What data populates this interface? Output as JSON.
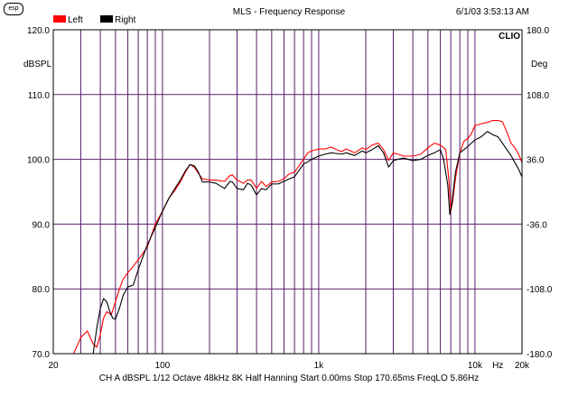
{
  "header": {
    "watermark": "esp",
    "title": "MLS - Frequency Response",
    "timestamp": "6/1/03 3:53:13 AM",
    "brand": "CLIO"
  },
  "footer": {
    "settings": "CH A   dBSPL   1/12 Octave   48kHz   8K   Half Hanning   Start 0.00ms   Stop 170.65ms   FreqLO 5.86Hz"
  },
  "colors": {
    "left": "#ff0000",
    "right": "#000000",
    "vgrid": "#5a1e6e",
    "hgrid": "#5a1e6e"
  },
  "chart_data": {
    "type": "line",
    "title": "MLS - Frequency Response",
    "xscale": "log",
    "xlim": [
      20,
      20000
    ],
    "ylim": [
      70,
      120
    ],
    "y2lim": [
      -180,
      180
    ],
    "ylabel": "dBSPL",
    "y2label": "Deg",
    "x_ticks": [
      {
        "v": 20,
        "label": "20"
      },
      {
        "v": 100,
        "label": "100"
      },
      {
        "v": 1000,
        "label": "1k"
      },
      {
        "v": 10000,
        "label": "10k"
      },
      {
        "v": 20000,
        "label": "20k"
      }
    ],
    "x_unit_label": "Hz",
    "y_ticks": [
      "70.0",
      "80.0",
      "90.0",
      "100.0",
      "110.0",
      "120.0"
    ],
    "y2_ticks": [
      "-180.0",
      "-108.0",
      "-36.0",
      "36.0",
      "108.0",
      "180.0"
    ],
    "legend": [
      "Left",
      "Right"
    ],
    "grid": true,
    "series": [
      {
        "name": "Left",
        "color": "#ff0000",
        "points": [
          [
            20,
            70.0
          ],
          [
            27,
            70.0
          ],
          [
            30,
            72.5
          ],
          [
            33,
            73.5
          ],
          [
            36,
            71.5
          ],
          [
            38,
            71.0
          ],
          [
            40,
            73
          ],
          [
            42,
            75.5
          ],
          [
            44,
            76.5
          ],
          [
            47,
            76
          ],
          [
            50,
            78
          ],
          [
            53,
            80
          ],
          [
            56,
            81.5
          ],
          [
            60,
            82.5
          ],
          [
            65,
            83.5
          ],
          [
            70,
            84.5
          ],
          [
            75,
            85.5
          ],
          [
            80,
            86.5
          ],
          [
            90,
            90
          ],
          [
            100,
            92
          ],
          [
            110,
            94
          ],
          [
            120,
            95.2
          ],
          [
            130,
            96.5
          ],
          [
            140,
            98
          ],
          [
            150,
            99.2
          ],
          [
            160,
            98.8
          ],
          [
            170,
            97.8
          ],
          [
            180,
            97
          ],
          [
            200,
            96.8
          ],
          [
            220,
            96.8
          ],
          [
            250,
            96.6
          ],
          [
            270,
            97.5
          ],
          [
            280,
            97.6
          ],
          [
            300,
            96.8
          ],
          [
            330,
            96.3
          ],
          [
            350,
            96.8
          ],
          [
            370,
            96.8
          ],
          [
            400,
            95.5
          ],
          [
            430,
            96.6
          ],
          [
            460,
            95.8
          ],
          [
            500,
            96.5
          ],
          [
            550,
            96.6
          ],
          [
            600,
            97.0
          ],
          [
            650,
            97.8
          ],
          [
            700,
            98.0
          ],
          [
            800,
            100.0
          ],
          [
            850,
            101.0
          ],
          [
            900,
            101.3
          ],
          [
            1000,
            101.6
          ],
          [
            1100,
            101.6
          ],
          [
            1200,
            101.9
          ],
          [
            1300,
            101.5
          ],
          [
            1400,
            101.2
          ],
          [
            1500,
            101.6
          ],
          [
            1700,
            101.0
          ],
          [
            1900,
            101.8
          ],
          [
            2000,
            101.5
          ],
          [
            2200,
            102.2
          ],
          [
            2400,
            102.5
          ],
          [
            2600,
            101.5
          ],
          [
            2800,
            99.8
          ],
          [
            3000,
            101.0
          ],
          [
            3200,
            100.8
          ],
          [
            3500,
            100.5
          ],
          [
            4000,
            100.5
          ],
          [
            4500,
            100.8
          ],
          [
            5000,
            101.8
          ],
          [
            5500,
            102.5
          ],
          [
            6000,
            102.2
          ],
          [
            6500,
            101.5
          ],
          [
            6800,
            97
          ],
          [
            7000,
            92
          ],
          [
            7200,
            93.5
          ],
          [
            7500,
            97
          ],
          [
            8000,
            101.0
          ],
          [
            8500,
            102.8
          ],
          [
            9000,
            103.2
          ],
          [
            9500,
            104.0
          ],
          [
            10000,
            105.2
          ],
          [
            11000,
            105.5
          ],
          [
            12000,
            105.7
          ],
          [
            13000,
            106.0
          ],
          [
            14000,
            106.0
          ],
          [
            15000,
            105.8
          ],
          [
            16000,
            104.2
          ],
          [
            17000,
            102.5
          ],
          [
            18000,
            101.8
          ],
          [
            19000,
            100.8
          ],
          [
            20000,
            99.5
          ]
        ]
      },
      {
        "name": "Right",
        "color": "#000000",
        "points": [
          [
            20,
            70.0
          ],
          [
            36,
            70.0
          ],
          [
            38,
            74
          ],
          [
            40,
            77
          ],
          [
            42,
            78.5
          ],
          [
            44,
            78
          ],
          [
            46,
            76.5
          ],
          [
            48,
            75.5
          ],
          [
            50,
            75.3
          ],
          [
            53,
            77
          ],
          [
            56,
            79
          ],
          [
            60,
            80.3
          ],
          [
            65,
            80.6
          ],
          [
            70,
            83
          ],
          [
            75,
            85
          ],
          [
            80,
            86.8
          ],
          [
            90,
            89.5
          ],
          [
            100,
            92
          ],
          [
            110,
            94
          ],
          [
            120,
            95.5
          ],
          [
            130,
            96.8
          ],
          [
            140,
            98.2
          ],
          [
            150,
            99.2
          ],
          [
            160,
            99.0
          ],
          [
            170,
            98.0
          ],
          [
            180,
            96.5
          ],
          [
            200,
            96.5
          ],
          [
            220,
            96.3
          ],
          [
            250,
            95.5
          ],
          [
            270,
            96.6
          ],
          [
            280,
            96.5
          ],
          [
            300,
            95.5
          ],
          [
            330,
            95.3
          ],
          [
            350,
            96.3
          ],
          [
            370,
            96
          ],
          [
            400,
            94.5
          ],
          [
            430,
            95.5
          ],
          [
            460,
            95.3
          ],
          [
            500,
            96.2
          ],
          [
            550,
            96.2
          ],
          [
            600,
            96.6
          ],
          [
            650,
            97.0
          ],
          [
            700,
            97.3
          ],
          [
            800,
            99.3
          ],
          [
            850,
            99.6
          ],
          [
            900,
            100.0
          ],
          [
            1000,
            100.5
          ],
          [
            1100,
            100.8
          ],
          [
            1200,
            101.0
          ],
          [
            1300,
            100.9
          ],
          [
            1400,
            100.8
          ],
          [
            1500,
            101.0
          ],
          [
            1700,
            100.6
          ],
          [
            1900,
            101.3
          ],
          [
            2000,
            101.0
          ],
          [
            2200,
            101.5
          ],
          [
            2400,
            102.1
          ],
          [
            2600,
            101.0
          ],
          [
            2800,
            98.8
          ],
          [
            3000,
            99.8
          ],
          [
            3200,
            100.0
          ],
          [
            3500,
            100.2
          ],
          [
            4000,
            99.8
          ],
          [
            4500,
            100.0
          ],
          [
            5000,
            100.6
          ],
          [
            5500,
            101.0
          ],
          [
            6000,
            101.5
          ],
          [
            6300,
            100.0
          ],
          [
            6700,
            96
          ],
          [
            6900,
            91.5
          ],
          [
            7100,
            93
          ],
          [
            7500,
            98
          ],
          [
            8000,
            101.0
          ],
          [
            8500,
            101.5
          ],
          [
            9000,
            102.0
          ],
          [
            9500,
            102.5
          ],
          [
            10000,
            103.0
          ],
          [
            11000,
            103.5
          ],
          [
            12000,
            104.3
          ],
          [
            13000,
            103.8
          ],
          [
            14000,
            103.5
          ],
          [
            15000,
            102.5
          ],
          [
            16000,
            101.5
          ],
          [
            17000,
            100.6
          ],
          [
            18000,
            99.5
          ],
          [
            19000,
            98.5
          ],
          [
            20000,
            97.3
          ]
        ]
      }
    ]
  }
}
